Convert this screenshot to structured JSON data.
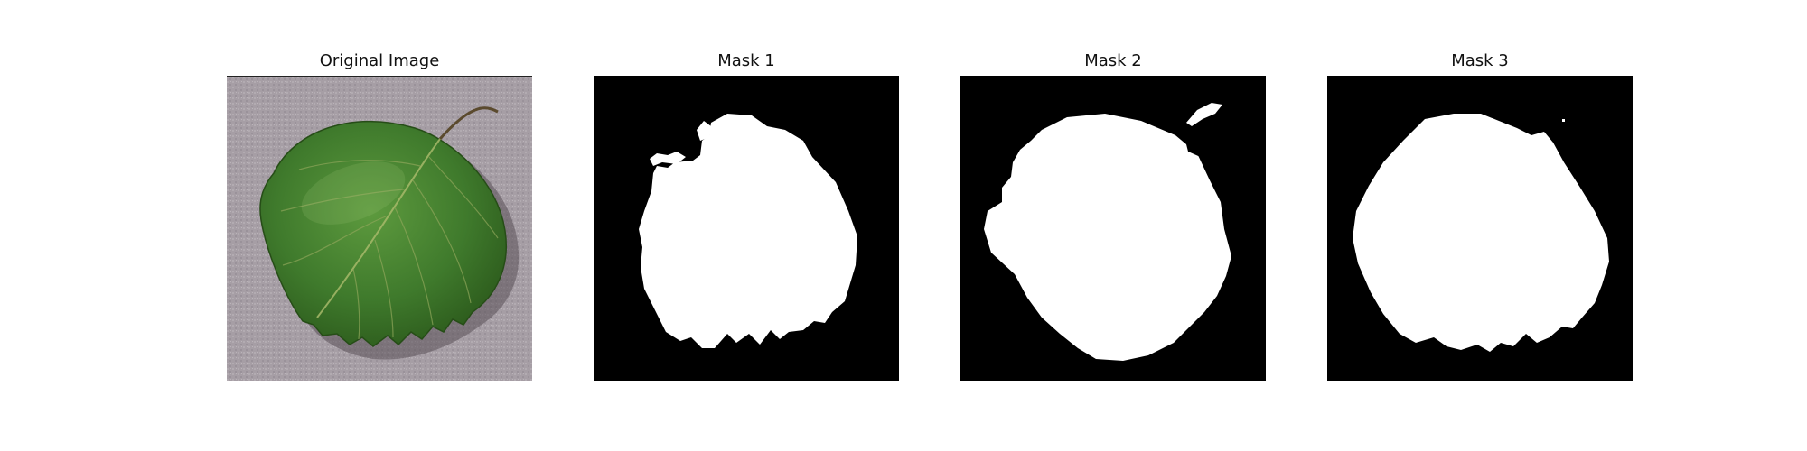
{
  "figure": {
    "panels": [
      {
        "title": "Original Image",
        "kind": "photo",
        "icon": "leaf-photo"
      },
      {
        "title": "Mask 1",
        "kind": "mask",
        "icon": "leaf-mask"
      },
      {
        "title": "Mask 2",
        "kind": "mask",
        "icon": "leaf-mask"
      },
      {
        "title": "Mask 3",
        "kind": "mask",
        "icon": "leaf-mask"
      }
    ],
    "colors": {
      "photo_background": "#a79fa6",
      "leaf_green": "#3f7a2c",
      "leaf_dark": "#2e5e1f",
      "mask_background": "#000000",
      "mask_foreground": "#ffffff"
    }
  }
}
